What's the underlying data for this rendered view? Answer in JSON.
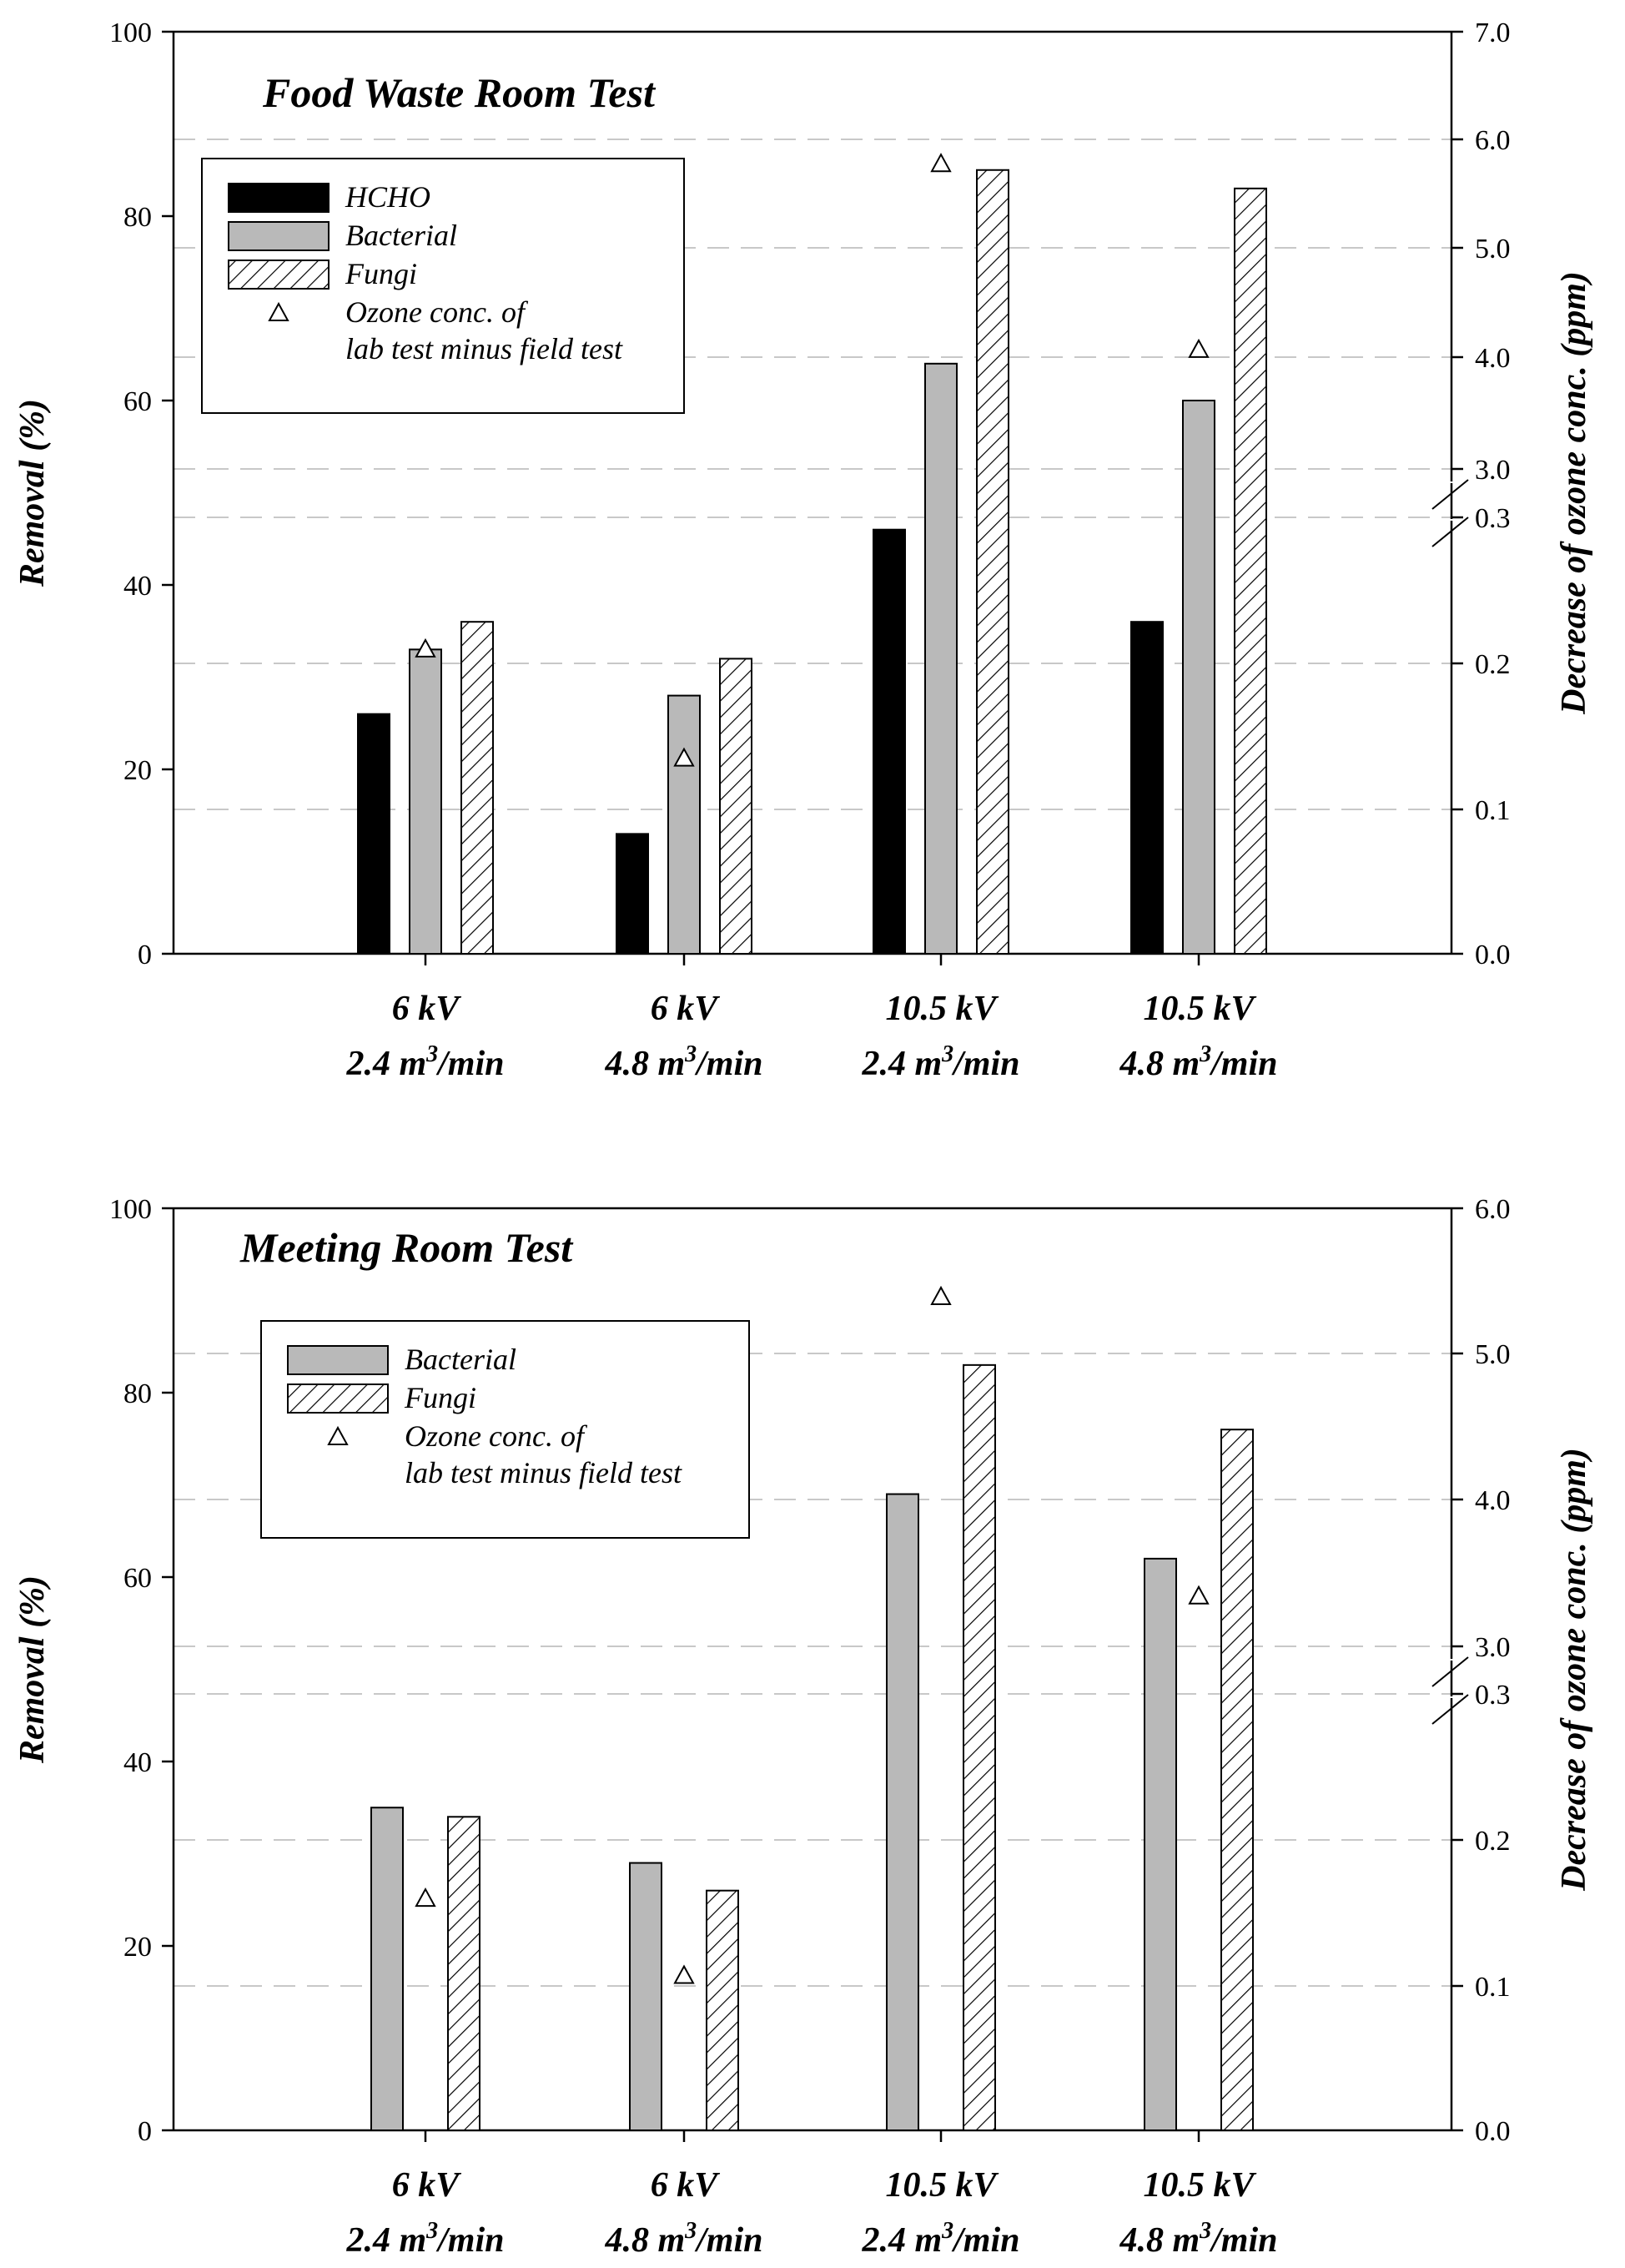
{
  "chart_data": [
    {
      "type": "bar",
      "title": "Food Waste Room Test",
      "ylabel": "Removal (%)",
      "y2label": "Decrease of ozone conc. (ppm)",
      "ylim": [
        0,
        100
      ],
      "yticks": [
        "0",
        "20",
        "40",
        "60",
        "80",
        "100"
      ],
      "y2ticks": [
        "0.0",
        "0.1",
        "0.2",
        "0.3",
        "3.0",
        "4.0",
        "5.0",
        "6.0",
        "7.0"
      ],
      "categories": [
        {
          "line1": "6 kV",
          "flow": "2.4 m",
          "exp": "3",
          "unit": "/min"
        },
        {
          "line1": "6 kV",
          "flow": "4.8 m",
          "exp": "3",
          "unit": "/min"
        },
        {
          "line1": "10.5 kV",
          "flow": "2.4 m",
          "exp": "3",
          "unit": "/min"
        },
        {
          "line1": "10.5 kV",
          "flow": "4.8 m",
          "exp": "3",
          "unit": "/min"
        }
      ],
      "series": [
        {
          "name": "HCHO",
          "style": "black",
          "values": [
            26,
            13,
            46,
            36
          ]
        },
        {
          "name": "Bacterial",
          "style": "gray",
          "values": [
            33,
            28,
            64,
            60
          ]
        },
        {
          "name": "Fungi",
          "style": "hatch",
          "values": [
            36,
            32,
            85,
            83
          ]
        }
      ],
      "ozone": {
        "name": "Ozone conc. of lab test minus field test",
        "legend_lines": [
          "Ozone conc. of",
          "lab test minus field test"
        ],
        "values_ppm": [
          0.21,
          0.135,
          5.8,
          4.1
        ]
      },
      "legend_placement": "upper-left",
      "grid": "dashed horizontal at right-axis ticks"
    },
    {
      "type": "bar",
      "title": "Meeting Room Test",
      "ylabel": "Removal (%)",
      "y2label": "Decrease of ozone conc. (ppm)",
      "ylim": [
        0,
        100
      ],
      "yticks": [
        "0",
        "20",
        "40",
        "60",
        "80",
        "100"
      ],
      "y2ticks": [
        "0.0",
        "0.1",
        "0.2",
        "0.3",
        "3.0",
        "4.0",
        "5.0",
        "6.0"
      ],
      "categories": [
        {
          "line1": "6 kV",
          "flow": "2.4 m",
          "exp": "3",
          "unit": "/min"
        },
        {
          "line1": "6 kV",
          "flow": "4.8 m",
          "exp": "3",
          "unit": "/min"
        },
        {
          "line1": "10.5 kV",
          "flow": "2.4 m",
          "exp": "3",
          "unit": "/min"
        },
        {
          "line1": "10.5 kV",
          "flow": "4.8 m",
          "exp": "3",
          "unit": "/min"
        }
      ],
      "series": [
        {
          "name": "Bacterial",
          "style": "gray",
          "values": [
            35,
            29,
            69,
            62
          ]
        },
        {
          "name": "Fungi",
          "style": "hatch",
          "values": [
            34,
            26,
            83,
            76
          ]
        }
      ],
      "ozone": {
        "name": "Ozone conc. of lab test minus field test",
        "legend_lines": [
          "Ozone conc. of",
          "lab test minus field test"
        ],
        "values_ppm": [
          0.16,
          0.107,
          5.4,
          3.35
        ]
      },
      "legend_placement": "upper-left",
      "grid": "dashed horizontal at right-axis ticks"
    }
  ]
}
